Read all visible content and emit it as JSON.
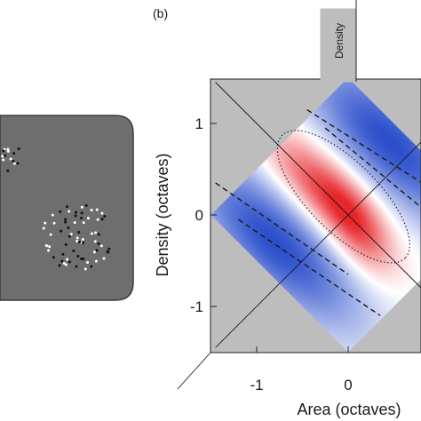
{
  "panel_label": "(b)",
  "chart_data": {
    "type": "heatmap",
    "xlabel": "Area (octaves)",
    "ylabel": "Density (octaves)",
    "rotated_axis_label": "Density",
    "xlim": [
      -1.45,
      1.2
    ],
    "ylim": [
      -1.45,
      1.45
    ],
    "x_ticks": [
      -1,
      0
    ],
    "x_tick_labels": [
      "-1",
      "0"
    ],
    "y_ticks": [
      1,
      0,
      -1
    ],
    "y_tick_labels": [
      "1",
      "0",
      "-1"
    ],
    "domain_diamond_half_width": 1.5,
    "colors": {
      "background": "#bdbdbd",
      "positive": "#e8262b",
      "negative": "#1f45c9",
      "neutral": "#ffffff",
      "stimulus_panel": "#6e6e6e"
    },
    "blobs": [
      {
        "kind": "positive",
        "x": -0.3,
        "y": 0.3,
        "sx": 0.55,
        "sy": 0.22,
        "angle_deg": -45,
        "amp": 0.85
      },
      {
        "kind": "positive",
        "x": 0.1,
        "y": -0.15,
        "sx": 0.4,
        "sy": 0.2,
        "angle_deg": -60,
        "amp": 0.6
      },
      {
        "kind": "negative",
        "x": 0.45,
        "y": 0.8,
        "sx": 0.9,
        "sy": 0.35,
        "angle_deg": -45,
        "amp": 0.95
      },
      {
        "kind": "negative",
        "x": -0.8,
        "y": -0.3,
        "sx": 0.9,
        "sy": 0.35,
        "angle_deg": -45,
        "amp": 0.95
      }
    ],
    "contours": [
      {
        "style": "dotted",
        "cx": -0.05,
        "cy": 0.2,
        "rx": 0.95,
        "ry": 0.38,
        "angle_deg": -45
      },
      {
        "style": "dashed",
        "x1": -0.45,
        "y1": 1.15,
        "x2": 1.2,
        "y2": 0.1
      },
      {
        "style": "dashed",
        "x1": -1.45,
        "y1": 0.35,
        "x2": 0.0,
        "y2": -0.65
      },
      {
        "style": "dashed",
        "x1": -0.25,
        "y1": 0.95,
        "x2": 1.2,
        "y2": -0.25
      },
      {
        "style": "dashed",
        "x1": -1.2,
        "y1": -0.05,
        "x2": 0.35,
        "y2": -1.1
      }
    ],
    "reference_lines": [
      {
        "style": "solid",
        "x1": -1.45,
        "y1": -1.45,
        "x2": 1.2,
        "y2": 1.2
      },
      {
        "style": "solid",
        "x1": -1.45,
        "y1": 1.45,
        "x2": 1.2,
        "y2": -1.2
      },
      {
        "style": "dotted",
        "x1": -1.45,
        "y1": 1.45,
        "x2": 1.2,
        "y2": -1.2
      }
    ]
  }
}
